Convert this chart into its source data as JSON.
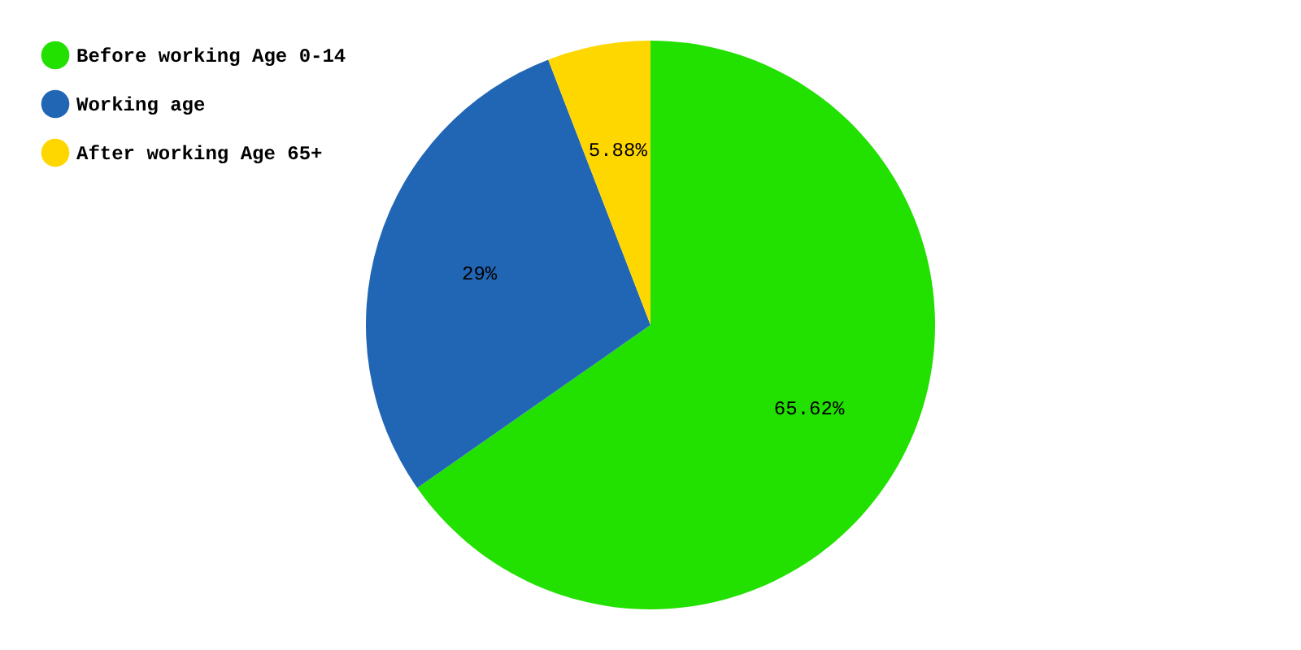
{
  "chart_data": {
    "type": "pie",
    "categories": [
      "Before working Age 0-14",
      "Working age",
      "After working Age 65+"
    ],
    "values": [
      65.62,
      29,
      5.88
    ],
    "colors": [
      "#22e000",
      "#2166b4",
      "#ffd700"
    ],
    "value_labels": [
      "65.62%",
      "29%",
      "5.88%"
    ],
    "legend": "top left"
  }
}
